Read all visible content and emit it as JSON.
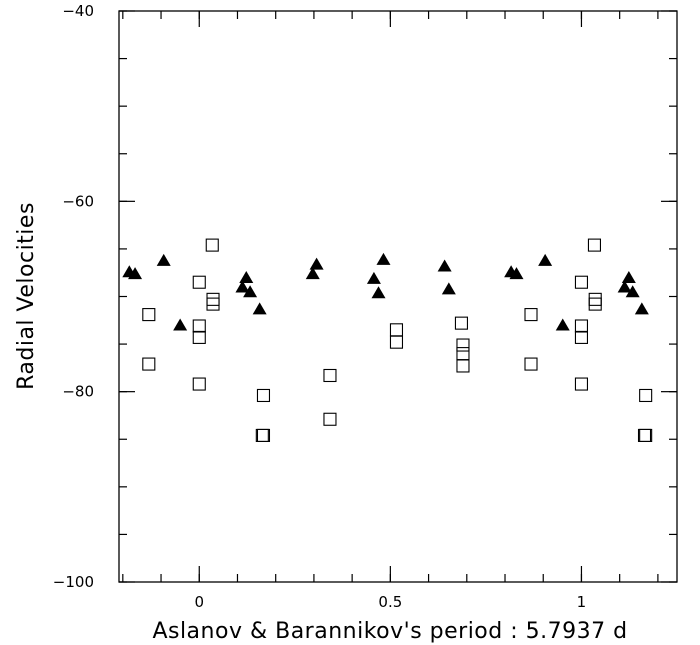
{
  "chart_data": {
    "type": "scatter",
    "title": "",
    "xlabel": "Aslanov & Barannikov's period : 5.7937 d",
    "ylabel": "Radial Velocities",
    "xlim": [
      -0.21,
      1.25
    ],
    "ylim": [
      -100,
      -40
    ],
    "x_ticks": [
      {
        "value": 0,
        "label": "0"
      },
      {
        "value": 0.5,
        "label": "0.5"
      },
      {
        "value": 1,
        "label": "1"
      }
    ],
    "y_ticks": [
      {
        "value": -40,
        "label": "−40"
      },
      {
        "value": -60,
        "label": "−60"
      },
      {
        "value": -80,
        "label": "−80"
      },
      {
        "value": -100,
        "label": "−100"
      }
    ],
    "x_minor_step": 0.1,
    "y_minor_step": 5,
    "grid": false,
    "series": [
      {
        "marker": "filled-triangle",
        "points": [
          [
            -0.183,
            -67.5
          ],
          [
            -0.168,
            -67.7
          ],
          [
            -0.093,
            -66.3
          ],
          [
            -0.05,
            -73.1
          ],
          [
            0.113,
            -69.1
          ],
          [
            0.123,
            -68.1
          ],
          [
            0.133,
            -69.6
          ],
          [
            0.158,
            -71.4
          ],
          [
            0.297,
            -67.7
          ],
          [
            0.307,
            -66.7
          ],
          [
            0.457,
            -68.2
          ],
          [
            0.469,
            -69.7
          ],
          [
            0.482,
            -66.2
          ],
          [
            0.642,
            -66.9
          ],
          [
            0.653,
            -69.3
          ],
          [
            0.816,
            -67.5
          ],
          [
            0.83,
            -67.7
          ],
          [
            0.905,
            -66.3
          ],
          [
            0.951,
            -73.1
          ],
          [
            1.113,
            -69.1
          ],
          [
            1.124,
            -68.1
          ],
          [
            1.134,
            -69.6
          ],
          [
            1.158,
            -71.4
          ]
        ]
      },
      {
        "marker": "open-square",
        "points": [
          [
            -0.132,
            -71.9
          ],
          [
            -0.132,
            -77.1
          ],
          [
            0.0,
            -68.5
          ],
          [
            0.0,
            -73.1
          ],
          [
            0.0,
            -74.3
          ],
          [
            0.0,
            -79.2
          ],
          [
            0.034,
            -64.6
          ],
          [
            0.036,
            -70.3
          ],
          [
            0.036,
            -70.8
          ],
          [
            0.168,
            -80.4
          ],
          [
            0.168,
            -84.6
          ],
          [
            0.165,
            -84.6
          ],
          [
            0.342,
            -78.3
          ],
          [
            0.342,
            -82.9
          ],
          [
            0.516,
            -73.5
          ],
          [
            0.516,
            -74.8
          ],
          [
            0.686,
            -72.8
          ],
          [
            0.69,
            -75.1
          ],
          [
            0.69,
            -76.0
          ],
          [
            0.69,
            -77.3
          ],
          [
            0.868,
            -71.9
          ],
          [
            0.868,
            -77.1
          ],
          [
            1.0,
            -68.5
          ],
          [
            1.0,
            -73.1
          ],
          [
            1.0,
            -74.3
          ],
          [
            1.0,
            -79.2
          ],
          [
            1.034,
            -64.6
          ],
          [
            1.036,
            -70.3
          ],
          [
            1.036,
            -70.8
          ],
          [
            1.168,
            -80.4
          ],
          [
            1.168,
            -84.6
          ],
          [
            1.165,
            -84.6
          ]
        ]
      }
    ]
  }
}
